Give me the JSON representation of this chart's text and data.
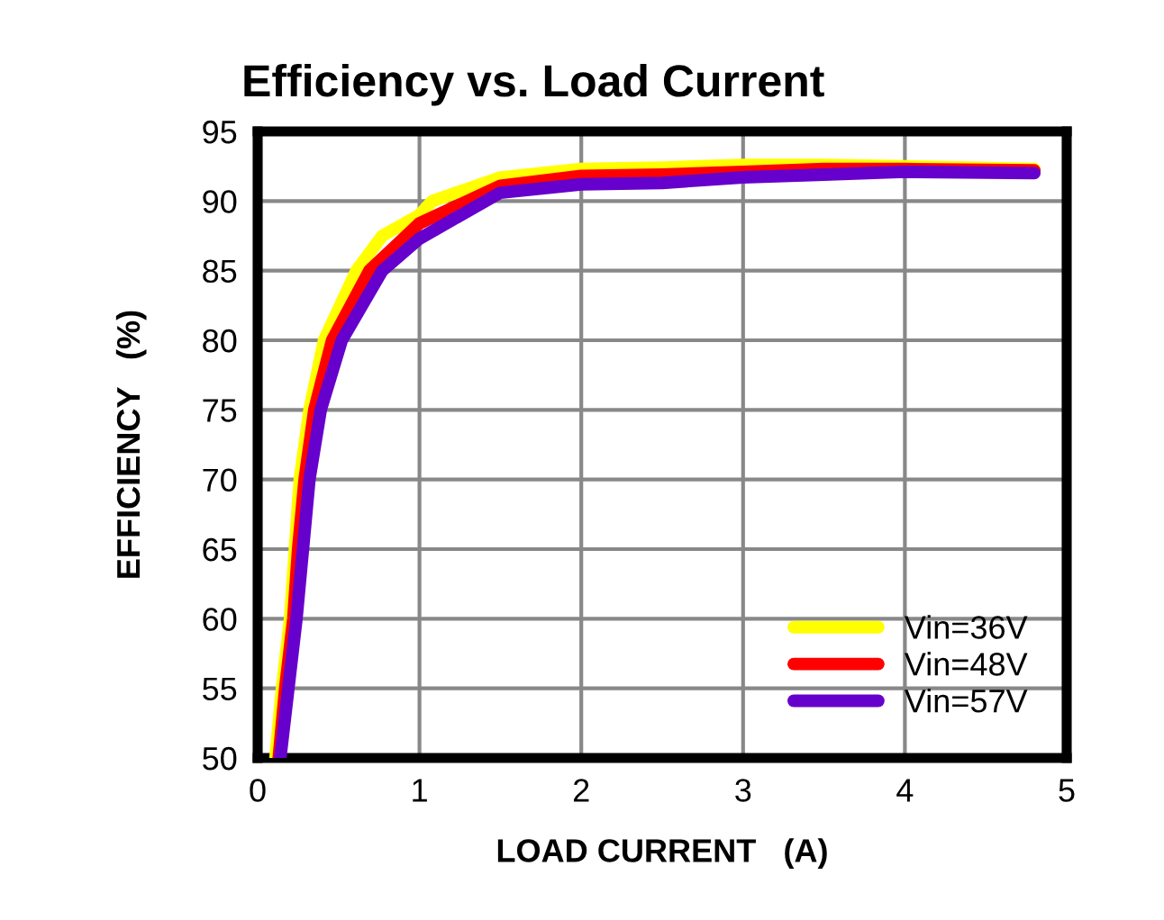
{
  "chart_data": {
    "type": "line",
    "title": "Efficiency vs. Load Current",
    "xlabel": "LOAD CURRENT   (A)",
    "ylabel": "EFFICIENCY   (%)",
    "xlim": [
      0,
      5
    ],
    "xticks": [
      0,
      1,
      2,
      3,
      4,
      5
    ],
    "ylim": [
      50,
      95
    ],
    "yticks": [
      50,
      55,
      60,
      65,
      70,
      75,
      80,
      85,
      90,
      95
    ],
    "grid": true,
    "legend": "bottom right",
    "marker": "none",
    "line_style": "solid",
    "series": [
      {
        "name": "Vin=36V",
        "color": "#ffff00",
        "x": [
          0.11,
          0.15,
          0.2,
          0.23,
          0.26,
          0.32,
          0.41,
          0.61,
          0.77,
          1.0,
          1.08,
          1.5,
          2.0,
          2.5,
          3.0,
          3.5,
          4.0,
          4.8
        ],
        "values": [
          50,
          55,
          60,
          65,
          70,
          75,
          80,
          85,
          87.5,
          89.0,
          90,
          91.7,
          92.3,
          92.4,
          92.6,
          92.6,
          92.5,
          92.3
        ]
      },
      {
        "name": "Vin=48V",
        "color": "#ff0000",
        "x": [
          0.13,
          0.17,
          0.22,
          0.25,
          0.29,
          0.35,
          0.46,
          0.69,
          1.0,
          1.5,
          2.0,
          2.5,
          3.0,
          3.5,
          4.0,
          4.8
        ],
        "values": [
          50,
          55,
          60,
          65,
          70,
          75,
          80,
          85,
          88.4,
          91.1,
          91.8,
          91.9,
          92.1,
          92.3,
          92.3,
          92.2
        ]
      },
      {
        "name": "Vin=57V",
        "color": "#6600cc",
        "x": [
          0.14,
          0.19,
          0.24,
          0.28,
          0.32,
          0.39,
          0.52,
          0.77,
          1.0,
          1.5,
          2.0,
          2.5,
          3.0,
          3.5,
          4.0,
          4.8
        ],
        "values": [
          50,
          55,
          60,
          65,
          70,
          75,
          80,
          85,
          87.3,
          90.6,
          91.2,
          91.3,
          91.7,
          91.9,
          92.1,
          92.0
        ]
      }
    ]
  }
}
